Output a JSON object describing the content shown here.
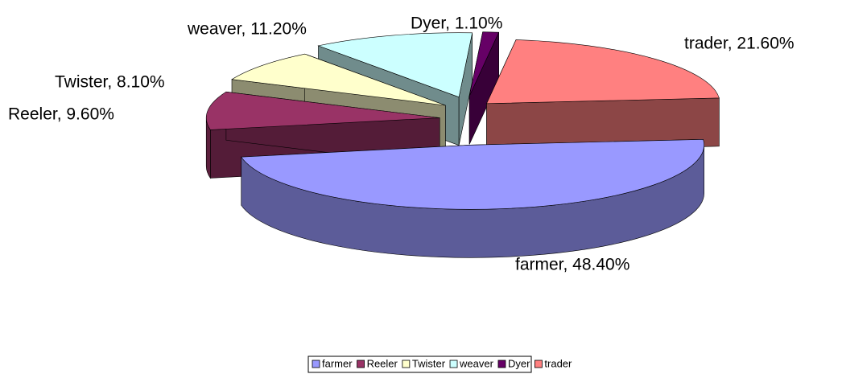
{
  "chart_data": {
    "type": "pie",
    "categories": [
      "farmer",
      "Reeler",
      "Twister",
      "weaver",
      "Dyer",
      "trader"
    ],
    "values": [
      48.4,
      9.6,
      8.1,
      11.2,
      1.1,
      21.6
    ],
    "value_labels": [
      "farmer, 48.40%",
      "Reeler, 9.60%",
      "Twister, 8.10%",
      "weaver, 11.20%",
      "Dyer, 1.10%",
      "trader, 21.60%"
    ],
    "colors": [
      "#9999ff",
      "#993366",
      "#ffffcc",
      "#ccffff",
      "#660066",
      "#ff8080"
    ],
    "legend": "bottom"
  }
}
